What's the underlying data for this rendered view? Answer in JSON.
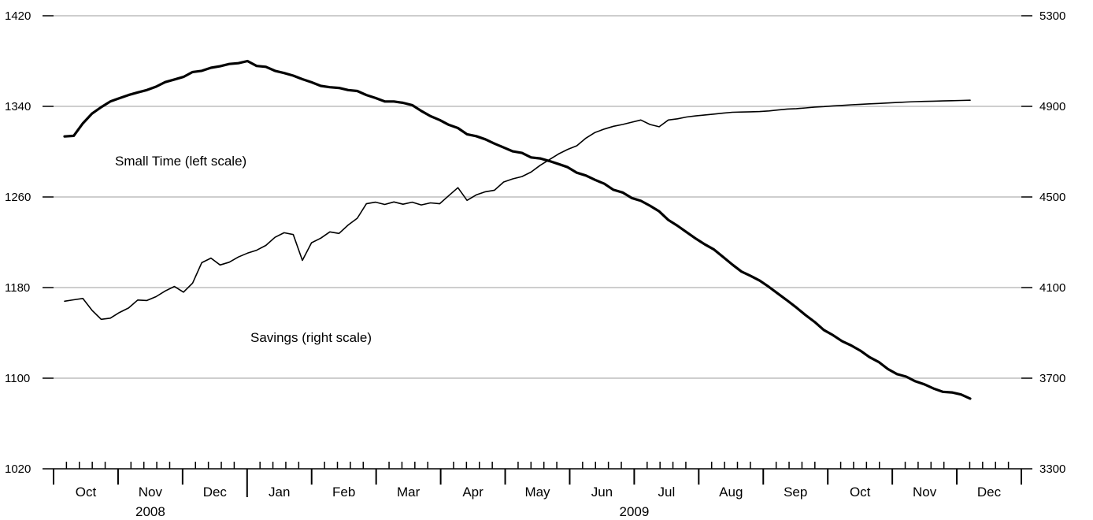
{
  "chart_data": {
    "type": "line",
    "title": "",
    "xlabel": "",
    "ylabel": "",
    "x_start": "2008-09",
    "left_axis": {
      "ylim": [
        1020,
        1420
      ],
      "ticks": [
        1020,
        1100,
        1180,
        1260,
        1340,
        1420
      ]
    },
    "right_axis": {
      "ylim": [
        3300,
        5300
      ],
      "ticks": [
        3300,
        3700,
        4100,
        4500,
        4900,
        5300
      ]
    },
    "grid": true,
    "months": [
      "Oct",
      "Nov",
      "Dec",
      "Jan",
      "Feb",
      "Mar",
      "Apr",
      "May",
      "Jun",
      "Jul",
      "Aug",
      "Sep",
      "Oct",
      "Nov",
      "Dec"
    ],
    "years": [
      {
        "label": "2008",
        "first_month": 0,
        "last_month": 2
      },
      {
        "label": "2009",
        "first_month": 3,
        "last_month": 14
      }
    ],
    "annotations": [
      {
        "text": "Small Time (left scale)",
        "series": "Small Time"
      },
      {
        "text": "Savings (right scale)",
        "series": "Savings"
      }
    ],
    "series": [
      {
        "name": "Small Time",
        "axis": "left",
        "line": "thick",
        "color": "#000000",
        "x": [
          27,
          30,
          33,
          36,
          39,
          42,
          45,
          48,
          51,
          54,
          57,
          60,
          63,
          66,
          69,
          72,
          75,
          78,
          81,
          84,
          87,
          90,
          93,
          96,
          99,
          102,
          105,
          108,
          111,
          114,
          117,
          120,
          123,
          126,
          129,
          132,
          135,
          138,
          141,
          144,
          147,
          150,
          153,
          156,
          159,
          162,
          165,
          168,
          171,
          174,
          177,
          180,
          183,
          186,
          189,
          192,
          195,
          198,
          201,
          204,
          207,
          210,
          213,
          216,
          219,
          222,
          225,
          228,
          231,
          234,
          237,
          240,
          243,
          246,
          249,
          252,
          255,
          258,
          261,
          264,
          267,
          270,
          273,
          276,
          279,
          282,
          285,
          288,
          291,
          294,
          297,
          300,
          303,
          306,
          309,
          312,
          315,
          318,
          321,
          324
        ],
        "values": [
          1313.4,
          1314.0,
          1325.0,
          1333.6,
          1339.3,
          1344.3,
          1347.2,
          1350.0,
          1352.3,
          1354.4,
          1357.4,
          1361.4,
          1363.7,
          1366.0,
          1370.3,
          1371.4,
          1374.1,
          1375.4,
          1377.4,
          1378.1,
          1380.0,
          1375.7,
          1374.9,
          1371.4,
          1369.4,
          1367.1,
          1364.0,
          1361.3,
          1358.1,
          1356.9,
          1356.3,
          1354.4,
          1353.6,
          1350.0,
          1347.4,
          1344.3,
          1344.3,
          1343.1,
          1341.1,
          1336.0,
          1331.4,
          1328.0,
          1323.7,
          1320.9,
          1315.4,
          1313.7,
          1310.9,
          1307.1,
          1303.7,
          1300.3,
          1298.9,
          1294.9,
          1294.0,
          1291.7,
          1289.1,
          1286.3,
          1281.4,
          1278.9,
          1275.1,
          1271.7,
          1266.3,
          1264.0,
          1259.1,
          1256.6,
          1252.3,
          1247.3,
          1239.7,
          1234.6,
          1228.9,
          1223.3,
          1218.1,
          1213.6,
          1207.0,
          1200.3,
          1194.1,
          1190.3,
          1186.1,
          1180.6,
          1174.6,
          1168.6,
          1162.4,
          1155.7,
          1149.7,
          1142.6,
          1138.0,
          1132.6,
          1128.9,
          1124.3,
          1118.6,
          1114.3,
          1108.1,
          1103.6,
          1101.4,
          1097.3,
          1094.6,
          1090.9,
          1088.0,
          1087.4,
          1085.6,
          1082.0
        ]
      },
      {
        "name": "Savings",
        "axis": "right",
        "line": "thin",
        "color": "#000000",
        "x": [
          27,
          30,
          33,
          36,
          39,
          42,
          45,
          48,
          51,
          54,
          57,
          60,
          63,
          66,
          69,
          72,
          75,
          78,
          81,
          84,
          87,
          90,
          93,
          96,
          99,
          102,
          105,
          108,
          111,
          114,
          117,
          120,
          123,
          126,
          129,
          132,
          135,
          138,
          141,
          144,
          147,
          150,
          153,
          156,
          159,
          162,
          165,
          168,
          171,
          174,
          177,
          180,
          183,
          186,
          189,
          192,
          195,
          198,
          201,
          204,
          207,
          210,
          213,
          216,
          219,
          222,
          225,
          228,
          231,
          234,
          237,
          240,
          243,
          246,
          249,
          252,
          255,
          258,
          261,
          264,
          267,
          270,
          273,
          276,
          279,
          282,
          285,
          288,
          291,
          294,
          297,
          300,
          303,
          306,
          309,
          312,
          315,
          318,
          321,
          324
        ],
        "values": [
          4040,
          4046,
          4052,
          4000,
          3960,
          3965,
          3990,
          4010,
          4045,
          4043,
          4060,
          4085,
          4105,
          4080,
          4120,
          4210,
          4230,
          4200,
          4212,
          4235,
          4252,
          4265,
          4286,
          4322,
          4342,
          4334,
          4220,
          4298,
          4318,
          4346,
          4339,
          4376,
          4406,
          4470,
          4477,
          4467,
          4478,
          4468,
          4477,
          4465,
          4474,
          4470,
          4506,
          4541,
          4485,
          4509,
          4523,
          4530,
          4566,
          4580,
          4590,
          4610,
          4640,
          4665,
          4690,
          4710,
          4726,
          4760,
          4785,
          4800,
          4812,
          4820,
          4830,
          4840,
          4820,
          4810,
          4840,
          4845,
          4853,
          4858,
          4862,
          4866,
          4870,
          4874,
          4875,
          4876,
          4877,
          4880,
          4884,
          4888,
          4890,
          4893,
          4897,
          4899,
          4902,
          4904,
          4907,
          4909,
          4911,
          4913,
          4915,
          4917,
          4919,
          4921,
          4922,
          4923,
          4924,
          4925,
          4926,
          4927
        ]
      }
    ]
  }
}
